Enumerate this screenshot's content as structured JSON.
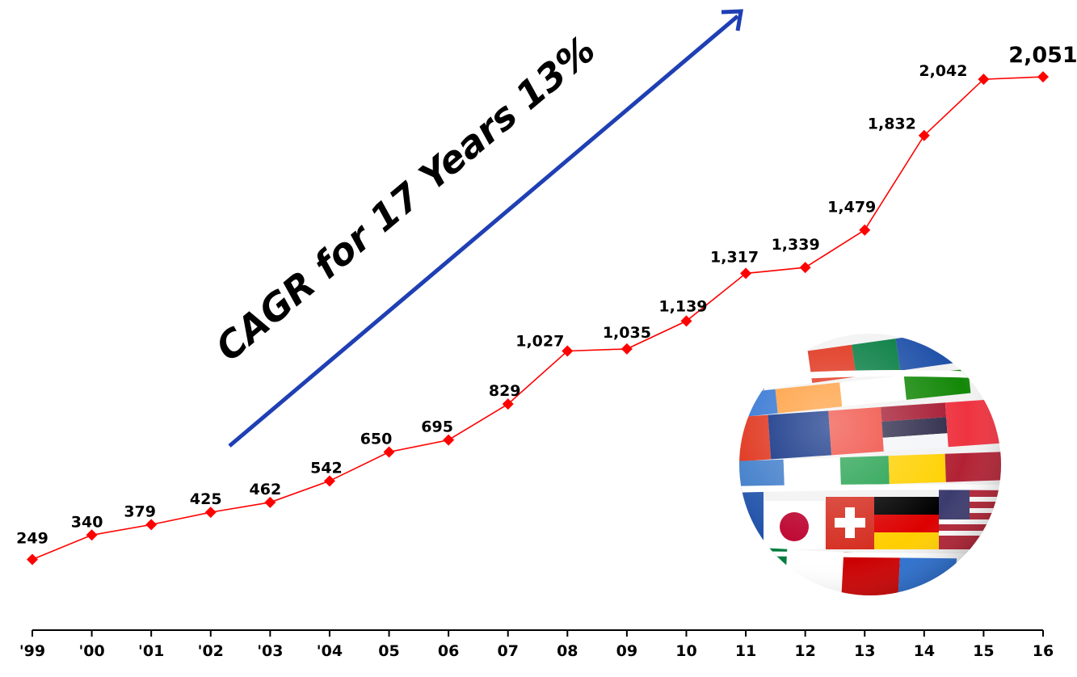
{
  "chart_data": {
    "type": "line",
    "categories": [
      "'99",
      "'00",
      "'01",
      "'02",
      "'03",
      "'04",
      "05",
      "06",
      "07",
      "08",
      "09",
      "10",
      "11",
      "12",
      "13",
      "14",
      "15",
      "16"
    ],
    "series": [
      {
        "values": [
          249,
          340,
          379,
          425,
          462,
          542,
          650,
          695,
          829,
          1027,
          1035,
          1139,
          1317,
          1339,
          1479,
          1832,
          2042,
          2051
        ],
        "data_labels": [
          "249",
          "340",
          "379",
          "425",
          "462",
          "542",
          "650",
          "695",
          "829",
          "1,027",
          "1,035",
          "1,139",
          "1,317",
          "1,339",
          "1,479",
          "1,832",
          "2,042",
          "2,051"
        ]
      }
    ],
    "annotation": "CAGR for 17 Years 13%",
    "ylim": [
      0,
      2200
    ],
    "grid": false,
    "legend": "none",
    "colors": {
      "line": "#ff0000",
      "marker": "#ff0000",
      "arrow": "#1f3fb4",
      "axis": "#000000"
    },
    "decoration": "globe-flags-icon"
  }
}
